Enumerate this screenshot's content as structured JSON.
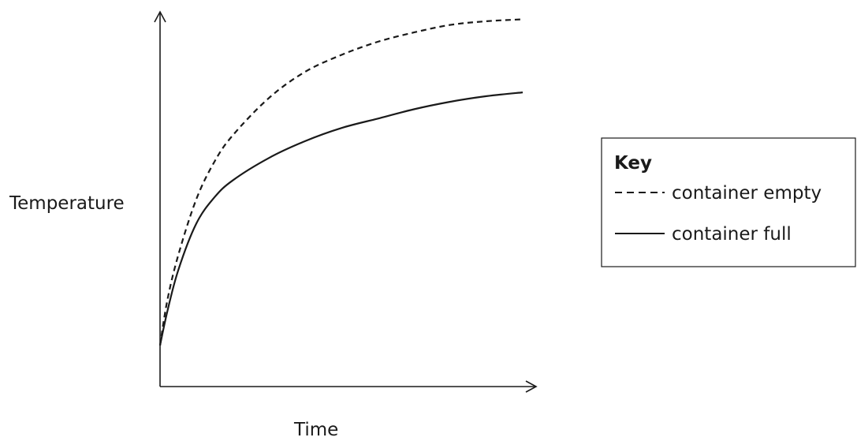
{
  "chart_data": {
    "type": "line",
    "xlabel": "Time",
    "ylabel": "Temperature",
    "xlim": [
      0,
      10
    ],
    "ylim": [
      0,
      10
    ],
    "ticks": false,
    "grid": false,
    "legend_title": "Key",
    "legend_position": "right",
    "series": [
      {
        "name": "container empty",
        "style": "dashed",
        "color": "#1a1a1a",
        "x": [
          0,
          0.2,
          0.5,
          1.0,
          1.5,
          2.0,
          3.0,
          4.0,
          5.0,
          6.0,
          7.0,
          8.0,
          9.0,
          10.0
        ],
        "y": [
          1.1,
          2.3,
          3.5,
          5.0,
          6.0,
          6.7,
          7.7,
          8.4,
          8.85,
          9.2,
          9.45,
          9.65,
          9.75,
          9.8
        ]
      },
      {
        "name": "container full",
        "style": "solid",
        "color": "#1a1a1a",
        "x": [
          0,
          0.2,
          0.5,
          1.0,
          1.5,
          2.0,
          3.0,
          4.0,
          5.0,
          6.0,
          7.0,
          8.0,
          9.0,
          10.0
        ],
        "y": [
          1.1,
          2.0,
          3.1,
          4.35,
          5.05,
          5.5,
          6.1,
          6.55,
          6.9,
          7.15,
          7.4,
          7.6,
          7.75,
          7.85
        ]
      }
    ]
  }
}
